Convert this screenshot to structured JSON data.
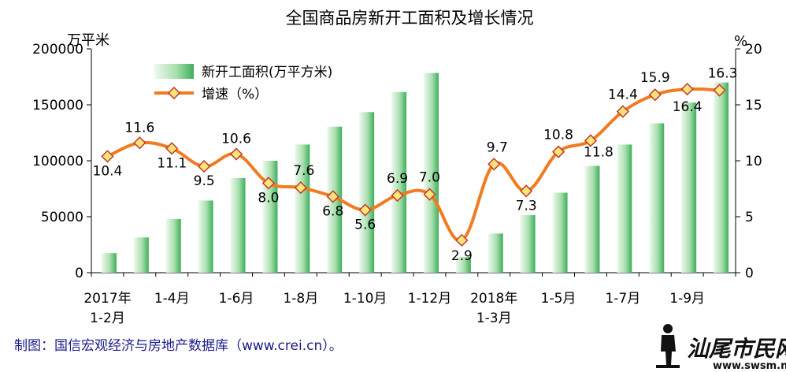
{
  "chart_data": {
    "type": "bar",
    "title": "全国商品房新开工面积及增长情况",
    "ylabel_left": "万平米",
    "ylabel_right": "%",
    "ylim_left": [
      0,
      200000
    ],
    "ylim_right": [
      0,
      20
    ],
    "left_ticks": [
      "200000",
      "150000",
      "100000",
      "50000",
      "0"
    ],
    "right_ticks": [
      "20",
      "15",
      "10",
      "5",
      "0"
    ],
    "xtick_labels": [
      {
        "index": 0,
        "line1": "2017年",
        "line2": "1-2月"
      },
      {
        "index": 2,
        "line1": "1-4月",
        "line2": ""
      },
      {
        "index": 4,
        "line1": "1-6月",
        "line2": ""
      },
      {
        "index": 6,
        "line1": "1-8月",
        "line2": ""
      },
      {
        "index": 8,
        "line1": "1-10月",
        "line2": ""
      },
      {
        "index": 10,
        "line1": "1-12月",
        "line2": ""
      },
      {
        "index": 12,
        "line1": "2018年",
        "line2": "1-3月"
      },
      {
        "index": 14,
        "line1": "1-5月",
        "line2": ""
      },
      {
        "index": 16,
        "line1": "1-7月",
        "line2": ""
      },
      {
        "index": 18,
        "line1": "1-9月",
        "line2": ""
      }
    ],
    "series": [
      {
        "name": "新开工面积(万平方米)",
        "kind": "bar",
        "axis": "left",
        "values": [
          17500,
          31500,
          48000,
          64500,
          84500,
          100000,
          114500,
          130500,
          143500,
          161500,
          178500,
          14000,
          35000,
          51500,
          71500,
          95500,
          114500,
          133500,
          152000,
          170000
        ]
      },
      {
        "name": "增速（%）",
        "kind": "line",
        "axis": "right",
        "values": [
          10.4,
          11.6,
          11.1,
          9.5,
          10.6,
          8.0,
          7.6,
          6.8,
          5.6,
          6.9,
          7.0,
          2.9,
          9.7,
          7.3,
          10.8,
          11.8,
          14.4,
          15.9,
          16.4,
          16.3
        ],
        "labels": [
          "10.4",
          "11.6",
          "11.1",
          "9.5",
          "10.6",
          "8.0",
          "7.6",
          "6.8",
          "5.6",
          "6.9",
          "7.0",
          "2.9",
          "9.7",
          "7.3",
          "10.8",
          "11.8",
          "14.4",
          "15.9",
          "16.4",
          "16.3"
        ]
      }
    ],
    "legend": {
      "placement": "top-left",
      "bar_label": "新开工面积(万平方米)",
      "line_label": "增速（%）"
    },
    "grid": false,
    "colors": {
      "bar_light": "#e6f7e6",
      "bar_dark": "#52b868",
      "line": "#f27b1f",
      "marker_fill": "#ffe47a",
      "marker_edge": "#c0392b"
    }
  },
  "source_text": "制图：国信宏观经济与房地产数据库（www.crei.cn）。",
  "watermark": {
    "name": "汕尾市民网",
    "url": "www.swsm.net"
  }
}
